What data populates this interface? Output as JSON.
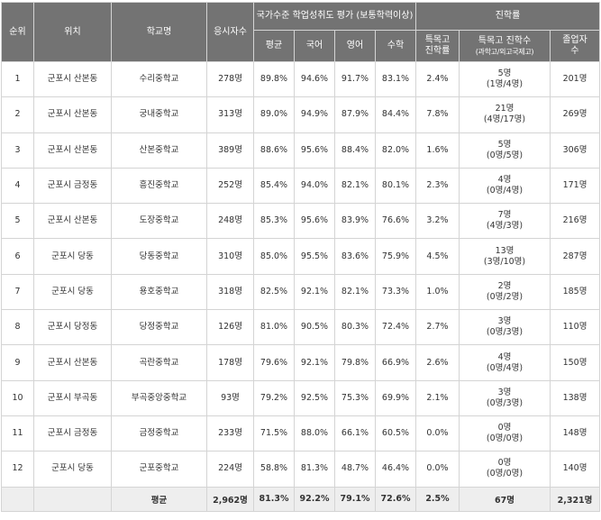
{
  "headers": {
    "rank": "순위",
    "location": "위치",
    "school": "학교명",
    "test_takers": "응시자수",
    "national_eval": "국가수준 학업성취도 평가 (보통학력이상)",
    "average": "평균",
    "korean": "국어",
    "english": "영어",
    "math": "수학",
    "advancement": "진학률",
    "special_rate_1": "특목고",
    "special_rate_2": "진학률",
    "special_count": "특목고 진학수",
    "special_count_sub": "(과학고/외고국제고)",
    "graduates_1": "졸업자",
    "graduates_2": "수"
  },
  "rows": [
    {
      "rank": "1",
      "location": "군포시 산본동",
      "school": "수리중학교",
      "test_takers": "278명",
      "avg": "89.8%",
      "korean": "94.6%",
      "english": "91.7%",
      "math": "83.1%",
      "special_rate": "2.4%",
      "special_count": "5명",
      "special_detail": "(1명/4명)",
      "graduates": "201명"
    },
    {
      "rank": "2",
      "location": "군포시 산본동",
      "school": "궁내중학교",
      "test_takers": "313명",
      "avg": "89.0%",
      "korean": "94.9%",
      "english": "87.9%",
      "math": "84.4%",
      "special_rate": "7.8%",
      "special_count": "21명",
      "special_detail": "(4명/17명)",
      "graduates": "269명"
    },
    {
      "rank": "3",
      "location": "군포시 산본동",
      "school": "산본중학교",
      "test_takers": "389명",
      "avg": "88.6%",
      "korean": "95.6%",
      "english": "88.4%",
      "math": "82.0%",
      "special_rate": "1.6%",
      "special_count": "5명",
      "special_detail": "(0명/5명)",
      "graduates": "306명"
    },
    {
      "rank": "4",
      "location": "군포시 금정동",
      "school": "흥진중학교",
      "test_takers": "252명",
      "avg": "85.4%",
      "korean": "94.0%",
      "english": "82.1%",
      "math": "80.1%",
      "special_rate": "2.3%",
      "special_count": "4명",
      "special_detail": "(0명/4명)",
      "graduates": "171명"
    },
    {
      "rank": "5",
      "location": "군포시 산본동",
      "school": "도장중학교",
      "test_takers": "248명",
      "avg": "85.3%",
      "korean": "95.6%",
      "english": "83.9%",
      "math": "76.6%",
      "special_rate": "3.2%",
      "special_count": "7명",
      "special_detail": "(4명/3명)",
      "graduates": "216명"
    },
    {
      "rank": "6",
      "location": "군포시 당동",
      "school": "당동중학교",
      "test_takers": "310명",
      "avg": "85.0%",
      "korean": "95.5%",
      "english": "83.6%",
      "math": "75.9%",
      "special_rate": "4.5%",
      "special_count": "13명",
      "special_detail": "(3명/10명)",
      "graduates": "287명"
    },
    {
      "rank": "7",
      "location": "군포시 당동",
      "school": "용호중학교",
      "test_takers": "318명",
      "avg": "82.5%",
      "korean": "92.1%",
      "english": "82.1%",
      "math": "73.3%",
      "special_rate": "1.0%",
      "special_count": "2명",
      "special_detail": "(0명/2명)",
      "graduates": "185명"
    },
    {
      "rank": "8",
      "location": "군포시 당정동",
      "school": "당정중학교",
      "test_takers": "126명",
      "avg": "81.0%",
      "korean": "90.5%",
      "english": "80.3%",
      "math": "72.4%",
      "special_rate": "2.7%",
      "special_count": "3명",
      "special_detail": "(0명/3명)",
      "graduates": "110명"
    },
    {
      "rank": "9",
      "location": "군포시 산본동",
      "school": "곡란중학교",
      "test_takers": "178명",
      "avg": "79.6%",
      "korean": "92.1%",
      "english": "79.8%",
      "math": "66.9%",
      "special_rate": "2.6%",
      "special_count": "4명",
      "special_detail": "(0명/4명)",
      "graduates": "150명"
    },
    {
      "rank": "10",
      "location": "군포시 부곡동",
      "school": "부곡중앙중학교",
      "test_takers": "93명",
      "avg": "79.2%",
      "korean": "92.5%",
      "english": "75.3%",
      "math": "69.9%",
      "special_rate": "2.1%",
      "special_count": "3명",
      "special_detail": "(0명/3명)",
      "graduates": "138명"
    },
    {
      "rank": "11",
      "location": "군포시 금정동",
      "school": "금정중학교",
      "test_takers": "233명",
      "avg": "71.5%",
      "korean": "88.0%",
      "english": "66.1%",
      "math": "60.5%",
      "special_rate": "0.0%",
      "special_count": "0명",
      "special_detail": "(0명/0명)",
      "graduates": "148명"
    },
    {
      "rank": "12",
      "location": "군포시 당동",
      "school": "군포중학교",
      "test_takers": "224명",
      "avg": "58.8%",
      "korean": "81.3%",
      "english": "48.7%",
      "math": "46.4%",
      "special_rate": "0.0%",
      "special_count": "0명",
      "special_detail": "(0명/0명)",
      "graduates": "140명"
    }
  ],
  "footer": {
    "label": "평균",
    "test_takers": "2,962명",
    "avg": "81.3%",
    "korean": "92.2%",
    "english": "79.1%",
    "math": "72.6%",
    "special_rate": "2.5%",
    "special_count": "67명",
    "graduates": "2,321명"
  },
  "colors": {
    "header_bg": "#737373",
    "header_text": "#ffffff",
    "border": "#d4d4d4",
    "footer_bg": "#eeeeee"
  }
}
